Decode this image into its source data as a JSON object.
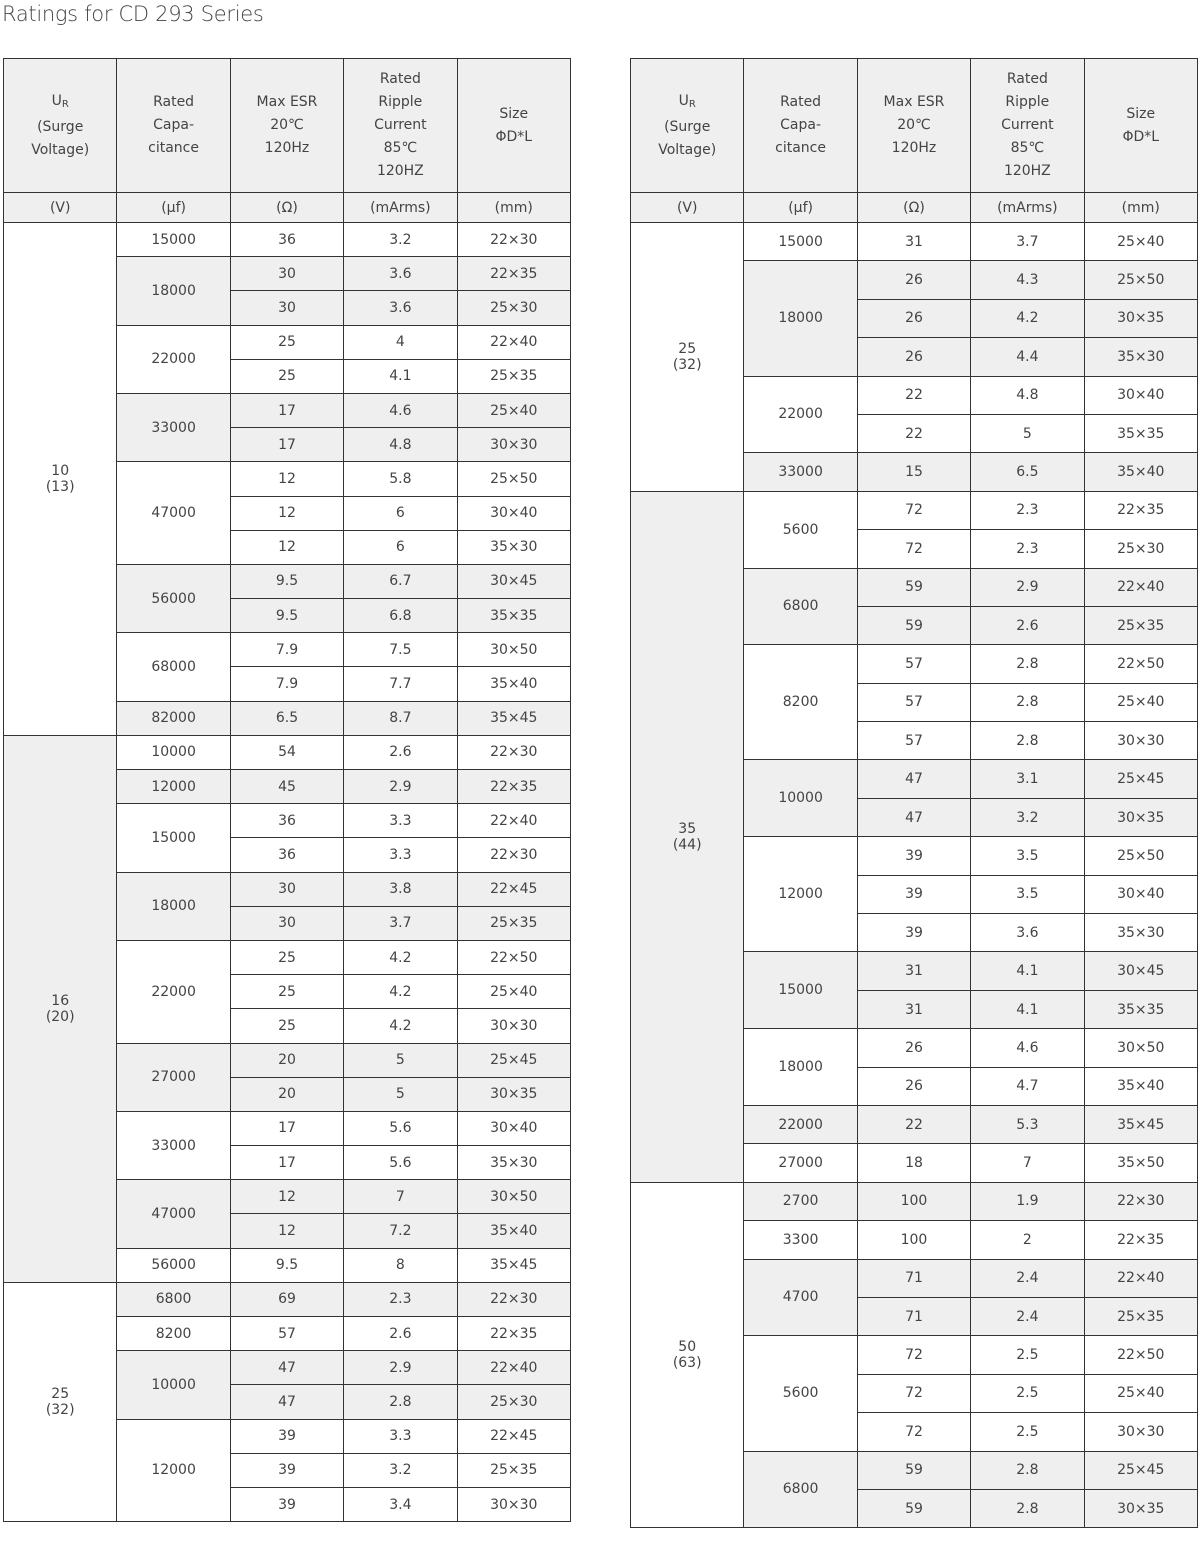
{
  "title": "Ratings for CD 293  Series",
  "colors": {
    "header_bg": "#efefef",
    "shade_bg": "#efefef",
    "border": "#333333"
  },
  "headers": {
    "ur": "U",
    "ur_sub": "R",
    "surge": "(Surge",
    "voltage": "Voltage)",
    "cap": [
      "Rated",
      "Capa-",
      "citance"
    ],
    "esr": [
      "Max ESR",
      "20℃",
      "120Hz"
    ],
    "ripple": [
      "Rated",
      "Ripple",
      "Current",
      "85℃",
      "120HZ"
    ],
    "size": [
      "Size",
      "ΦD*L"
    ]
  },
  "units": [
    "(V)",
    "(μf)",
    "(Ω)",
    "(mArms)",
    "(mm)"
  ],
  "tables": [
    [
      {
        "v": "10",
        "s": "(13)",
        "caps": [
          {
            "c": "15000",
            "rows": [
              [
                "36",
                "3.2",
                "22×30"
              ]
            ]
          },
          {
            "c": "18000",
            "rows": [
              [
                "30",
                "3.6",
                "22×35"
              ],
              [
                "30",
                "3.6",
                "25×30"
              ]
            ]
          },
          {
            "c": "22000",
            "rows": [
              [
                "25",
                "4",
                "22×40"
              ],
              [
                "25",
                "4.1",
                "25×35"
              ]
            ]
          },
          {
            "c": "33000",
            "rows": [
              [
                "17",
                "4.6",
                "25×40"
              ],
              [
                "17",
                "4.8",
                "30×30"
              ]
            ]
          },
          {
            "c": "47000",
            "rows": [
              [
                "12",
                "5.8",
                "25×50"
              ],
              [
                "12",
                "6",
                "30×40"
              ],
              [
                "12",
                "6",
                "35×30"
              ]
            ]
          },
          {
            "c": "56000",
            "rows": [
              [
                "9.5",
                "6.7",
                "30×45"
              ],
              [
                "9.5",
                "6.8",
                "35×35"
              ]
            ]
          },
          {
            "c": "68000",
            "rows": [
              [
                "7.9",
                "7.5",
                "30×50"
              ],
              [
                "7.9",
                "7.7",
                "35×40"
              ]
            ]
          },
          {
            "c": "82000",
            "rows": [
              [
                "6.5",
                "8.7",
                "35×45"
              ]
            ]
          }
        ]
      },
      {
        "v": "16",
        "s": "(20)",
        "caps": [
          {
            "c": "10000",
            "rows": [
              [
                "54",
                "2.6",
                "22×30"
              ]
            ]
          },
          {
            "c": "12000",
            "rows": [
              [
                "45",
                "2.9",
                "22×35"
              ]
            ]
          },
          {
            "c": "15000",
            "rows": [
              [
                "36",
                "3.3",
                "22×40"
              ],
              [
                "36",
                "3.3",
                "22×30"
              ]
            ]
          },
          {
            "c": "18000",
            "rows": [
              [
                "30",
                "3.8",
                "22×45"
              ],
              [
                "30",
                "3.7",
                "25×35"
              ]
            ]
          },
          {
            "c": "22000",
            "rows": [
              [
                "25",
                "4.2",
                "22×50"
              ],
              [
                "25",
                "4.2",
                "25×40"
              ],
              [
                "25",
                "4.2",
                "30×30"
              ]
            ]
          },
          {
            "c": "27000",
            "rows": [
              [
                "20",
                "5",
                "25×45"
              ],
              [
                "20",
                "5",
                "30×35"
              ]
            ]
          },
          {
            "c": "33000",
            "rows": [
              [
                "17",
                "5.6",
                "30×40"
              ],
              [
                "17",
                "5.6",
                "35×30"
              ]
            ]
          },
          {
            "c": "47000",
            "rows": [
              [
                "12",
                "7",
                "30×50"
              ],
              [
                "12",
                "7.2",
                "35×40"
              ]
            ]
          },
          {
            "c": "56000",
            "rows": [
              [
                "9.5",
                "8",
                "35×45"
              ]
            ]
          }
        ]
      },
      {
        "v": "25",
        "s": "(32)",
        "caps": [
          {
            "c": "6800",
            "rows": [
              [
                "69",
                "2.3",
                "22×30"
              ]
            ]
          },
          {
            "c": "8200",
            "rows": [
              [
                "57",
                "2.6",
                "22×35"
              ]
            ]
          },
          {
            "c": "10000",
            "rows": [
              [
                "47",
                "2.9",
                "22×40"
              ],
              [
                "47",
                "2.8",
                "25×30"
              ]
            ]
          },
          {
            "c": "12000",
            "rows": [
              [
                "39",
                "3.3",
                "22×45"
              ],
              [
                "39",
                "3.2",
                "25×35"
              ],
              [
                "39",
                "3.4",
                "30×30"
              ]
            ]
          }
        ]
      }
    ],
    [
      {
        "v": "25",
        "s": "(32)",
        "caps": [
          {
            "c": "15000",
            "rows": [
              [
                "31",
                "3.7",
                "25×40"
              ]
            ]
          },
          {
            "c": "18000",
            "rows": [
              [
                "26",
                "4.3",
                "25×50"
              ],
              [
                "26",
                "4.2",
                "30×35"
              ],
              [
                "26",
                "4.4",
                "35×30"
              ]
            ]
          },
          {
            "c": "22000",
            "rows": [
              [
                "22",
                "4.8",
                "30×40"
              ],
              [
                "22",
                "5",
                "35×35"
              ]
            ]
          },
          {
            "c": "33000",
            "rows": [
              [
                "15",
                "6.5",
                "35×40"
              ]
            ]
          }
        ]
      },
      {
        "v": "35",
        "s": "(44)",
        "caps": [
          {
            "c": "5600",
            "rows": [
              [
                "72",
                "2.3",
                "22×35"
              ],
              [
                "72",
                "2.3",
                "25×30"
              ]
            ]
          },
          {
            "c": "6800",
            "rows": [
              [
                "59",
                "2.9",
                "22×40"
              ],
              [
                "59",
                "2.6",
                "25×35"
              ]
            ]
          },
          {
            "c": "8200",
            "rows": [
              [
                "57",
                "2.8",
                "22×50"
              ],
              [
                "57",
                "2.8",
                "25×40"
              ],
              [
                "57",
                "2.8",
                "30×30"
              ]
            ]
          },
          {
            "c": "10000",
            "rows": [
              [
                "47",
                "3.1",
                "25×45"
              ],
              [
                "47",
                "3.2",
                "30×35"
              ]
            ]
          },
          {
            "c": "12000",
            "rows": [
              [
                "39",
                "3.5",
                "25×50"
              ],
              [
                "39",
                "3.5",
                "30×40"
              ],
              [
                "39",
                "3.6",
                "35×30"
              ]
            ]
          },
          {
            "c": "15000",
            "rows": [
              [
                "31",
                "4.1",
                "30×45"
              ],
              [
                "31",
                "4.1",
                "35×35"
              ]
            ]
          },
          {
            "c": "18000",
            "rows": [
              [
                "26",
                "4.6",
                "30×50"
              ],
              [
                "26",
                "4.7",
                "35×40"
              ]
            ]
          },
          {
            "c": "22000",
            "rows": [
              [
                "22",
                "5.3",
                "35×45"
              ]
            ]
          },
          {
            "c": "27000",
            "rows": [
              [
                "18",
                "7",
                "35×50"
              ]
            ]
          }
        ]
      },
      {
        "v": "50",
        "s": "(63)",
        "caps": [
          {
            "c": "2700",
            "rows": [
              [
                "100",
                "1.9",
                "22×30"
              ]
            ]
          },
          {
            "c": "3300",
            "rows": [
              [
                "100",
                "2",
                "22×35"
              ]
            ]
          },
          {
            "c": "4700",
            "rows": [
              [
                "71",
                "2.4",
                "22×40"
              ],
              [
                "71",
                "2.4",
                "25×35"
              ]
            ]
          },
          {
            "c": "5600",
            "rows": [
              [
                "72",
                "2.5",
                "22×50"
              ],
              [
                "72",
                "2.5",
                "25×40"
              ],
              [
                "72",
                "2.5",
                "30×30"
              ]
            ]
          },
          {
            "c": "6800",
            "rows": [
              [
                "59",
                "2.8",
                "25×45"
              ],
              [
                "59",
                "2.8",
                "30×35"
              ]
            ]
          }
        ]
      }
    ]
  ]
}
